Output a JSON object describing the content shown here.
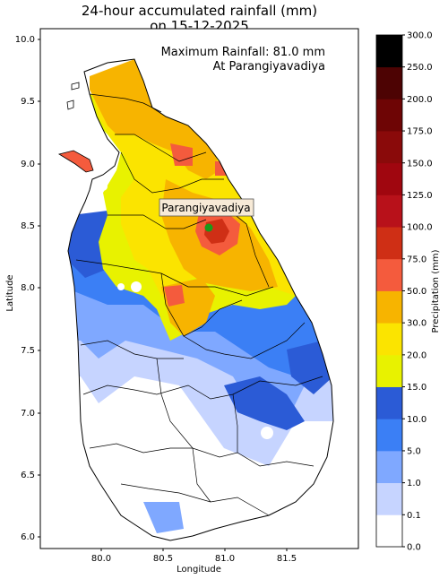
{
  "title": {
    "line1": "24-hour accumulated rainfall (mm)",
    "line2": "on 15-12-2025"
  },
  "annotation": {
    "max_line": "Maximum Rainfall: 81.0 mm",
    "at_line": "At Parangiyavadiya"
  },
  "station_label": "Parangiyavadiya",
  "axes": {
    "xlabel": "Longitude",
    "ylabel": "Latitude",
    "xlim": [
      79.5,
      82.0
    ],
    "ylim": [
      5.92,
      10.05
    ],
    "xticks": [
      "80.0",
      "80.5",
      "81.0",
      "81.5"
    ],
    "yticks": [
      "6.0",
      "6.5",
      "7.0",
      "7.5",
      "8.0",
      "8.5",
      "9.0",
      "9.5",
      "10.0"
    ]
  },
  "colorbar": {
    "label": "Precipitation (mm)",
    "ticks": [
      "0.0",
      "0.1",
      "1.0",
      "5.0",
      "10.0",
      "15.0",
      "20.0",
      "30.0",
      "50.0",
      "75.0",
      "100.0",
      "125.0",
      "150.0",
      "175.0",
      "200.0",
      "250.0",
      "300.0"
    ],
    "colors": [
      "#ffffff",
      "#c6d4ff",
      "#7fa8ff",
      "#3b7ff5",
      "#2b5bd6",
      "#e8f200",
      "#fbe400",
      "#f7b400",
      "#f45b3d",
      "#cf2f15",
      "#b8111a",
      "#a0060f",
      "#8a0a0a",
      "#6e0505",
      "#4d0303",
      "#000000"
    ]
  },
  "chart_data": {
    "type": "heatmap",
    "title": "24-hour accumulated rainfall (mm) on 15-12-2025",
    "xlabel": "Longitude",
    "ylabel": "Latitude",
    "units": "mm",
    "max_point": {
      "name": "Parangiyavadiya",
      "lon": 80.88,
      "lat": 8.49,
      "value": 81.0
    }
  }
}
